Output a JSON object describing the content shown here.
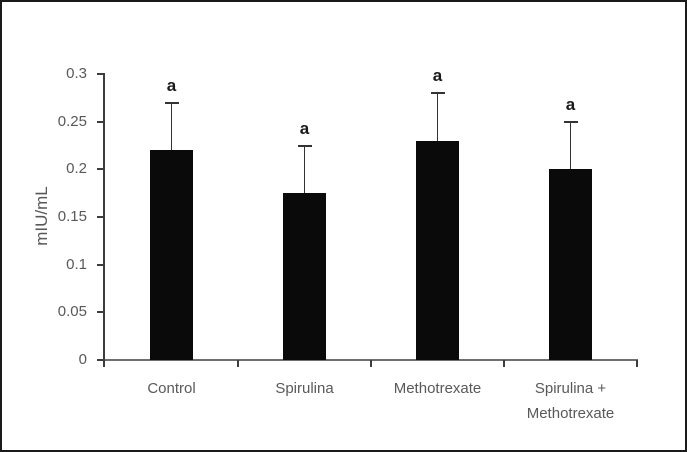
{
  "figure": {
    "background": "#ffffff",
    "border_color": "#1a1a1a"
  },
  "chart_data": {
    "type": "bar",
    "title": "",
    "xlabel": "",
    "ylabel": "mIU/mL",
    "categories": [
      "Control",
      "Spirulina",
      "Methotrexate",
      "Spirulina +\nMethotrexate"
    ],
    "values": [
      0.22,
      0.175,
      0.23,
      0.2
    ],
    "error_up": [
      0.05,
      0.05,
      0.05,
      0.05
    ],
    "bar_annotations": [
      "a",
      "a",
      "a",
      "a"
    ],
    "ylim": [
      0,
      0.3
    ],
    "ytick_step": 0.05,
    "ytick_labels": [
      "0",
      "0.05",
      "0.1",
      "0.15",
      "0.2",
      "0.25",
      "0.3"
    ],
    "grid": false,
    "legend": null,
    "bar_color": "#0a0a0a",
    "error_color": "#333333",
    "annotation_color": "#1a1a1a",
    "text_color": "#595959",
    "axis_color": "#3d3d3d"
  }
}
